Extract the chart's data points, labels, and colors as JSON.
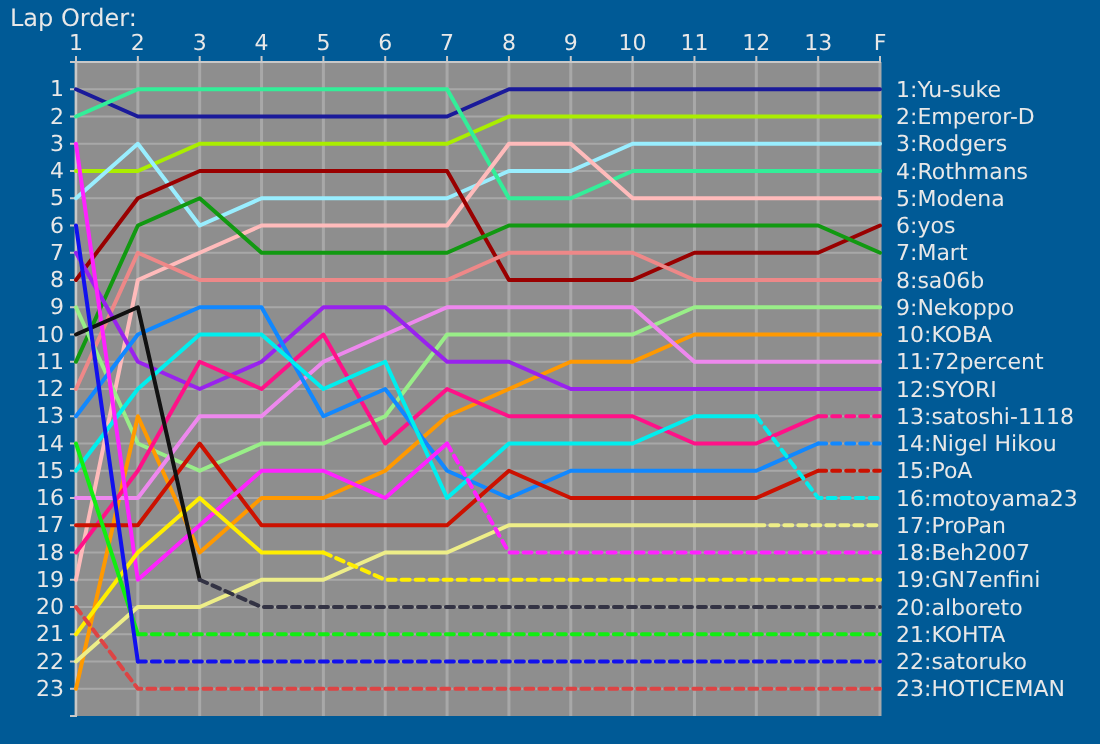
{
  "chart_data": {
    "type": "line",
    "title": "Lap Order:",
    "x": [
      1,
      2,
      3,
      4,
      5,
      6,
      7,
      8,
      9,
      10,
      11,
      12,
      13,
      14
    ],
    "xlim": [
      1,
      14
    ],
    "xticks": [
      1,
      2,
      3,
      4,
      5,
      6,
      7,
      8,
      9,
      10,
      11,
      12,
      13,
      {
        "value": 14,
        "label": "F"
      }
    ],
    "ylim": [
      24,
      0
    ],
    "yticks": [
      1,
      2,
      3,
      4,
      5,
      6,
      7,
      8,
      9,
      10,
      11,
      12,
      13,
      14,
      15,
      16,
      17,
      18,
      19,
      20,
      21,
      22,
      23
    ],
    "grid": true,
    "legend": false,
    "marker": "none",
    "line_style": "solid",
    "series": [
      {
        "name": "1:Yu-suke",
        "color": "#1a1a9a",
        "values": [
          1,
          2,
          2,
          2,
          2,
          2,
          2,
          1,
          1,
          1,
          1,
          1,
          1,
          1
        ]
      },
      {
        "name": "2:Emperor-D",
        "color": "#aaee00",
        "values": [
          4,
          4,
          3,
          3,
          3,
          3,
          3,
          2,
          2,
          2,
          2,
          2,
          2,
          2
        ]
      },
      {
        "name": "3:Rodgers",
        "color": "#99eeff",
        "values": [
          5,
          3,
          6,
          5,
          5,
          5,
          5,
          4,
          4,
          3,
          3,
          3,
          3,
          3
        ]
      },
      {
        "name": "4:Rothmans",
        "color": "#33ee99",
        "values": [
          2,
          1,
          1,
          1,
          1,
          1,
          1,
          5,
          5,
          4,
          4,
          4,
          4,
          4
        ]
      },
      {
        "name": "5:Modena",
        "color": "#ffbbbb",
        "values": [
          19,
          8,
          7,
          6,
          6,
          6,
          6,
          3,
          3,
          5,
          5,
          5,
          5,
          5
        ]
      },
      {
        "name": "6:yos",
        "color": "#990000",
        "values": [
          8,
          5,
          4,
          4,
          4,
          4,
          4,
          8,
          8,
          8,
          7,
          7,
          7,
          6
        ]
      },
      {
        "name": "7:Mart",
        "color": "#119911",
        "values": [
          11,
          6,
          5,
          7,
          7,
          7,
          7,
          6,
          6,
          6,
          6,
          6,
          6,
          7
        ]
      },
      {
        "name": "8:sa06b",
        "color": "#ee8888",
        "values": [
          12,
          7,
          8,
          8,
          8,
          8,
          8,
          7,
          7,
          7,
          8,
          8,
          8,
          8
        ]
      },
      {
        "name": "9:Nekoppo",
        "color": "#99ee88",
        "values": [
          9,
          14,
          15,
          14,
          14,
          13,
          10,
          10,
          10,
          10,
          9,
          9,
          9,
          9
        ]
      },
      {
        "name": "10:KOBA",
        "color": "#ff9900",
        "values": [
          23,
          13,
          18,
          16,
          16,
          15,
          13,
          12,
          11,
          11,
          10,
          10,
          10,
          10
        ]
      },
      {
        "name": "11:72percent",
        "color": "#ee88ee",
        "values": [
          16,
          16,
          13,
          13,
          11,
          10,
          9,
          9,
          9,
          9,
          11,
          11,
          11,
          11
        ]
      },
      {
        "name": "12:SYORI",
        "color": "#9922ee",
        "values": [
          7,
          11,
          12,
          11,
          9,
          9,
          11,
          11,
          12,
          12,
          12,
          12,
          12,
          12
        ]
      },
      {
        "color": "#ff1188",
        "values": [
          18,
          15,
          11,
          12,
          10,
          14,
          12,
          13,
          13,
          13,
          14,
          14,
          13,
          null
        ]
      },
      {
        "name": "13:satoshi-1118",
        "color": "#ff1188",
        "line_style": "dashed",
        "x": [
          13,
          14
        ],
        "values": [
          13,
          13
        ]
      },
      {
        "color": "#1188ff",
        "values": [
          13,
          10,
          9,
          9,
          13,
          12,
          15,
          16,
          15,
          15,
          15,
          15,
          14,
          null
        ]
      },
      {
        "name": "14:Nigel Hikou",
        "color": "#1188ff",
        "line_style": "dashed",
        "x": [
          13,
          14
        ],
        "values": [
          14,
          14
        ]
      },
      {
        "color": "#cc1100",
        "values": [
          17,
          17,
          14,
          17,
          17,
          17,
          17,
          15,
          16,
          16,
          16,
          16,
          15,
          null
        ]
      },
      {
        "name": "15:PoA",
        "color": "#cc1100",
        "line_style": "dashed",
        "x": [
          13,
          14
        ],
        "values": [
          15,
          15
        ]
      },
      {
        "color": "#00eeee",
        "values": [
          15,
          12,
          10,
          10,
          12,
          11,
          16,
          14,
          14,
          14,
          13,
          13,
          null,
          null
        ]
      },
      {
        "name": "16:motoyama23",
        "color": "#00eeee",
        "line_style": "dashed",
        "x": [
          12,
          13,
          14
        ],
        "values": [
          13,
          16,
          16
        ]
      },
      {
        "color": "#eeee88",
        "values": [
          22,
          20,
          20,
          19,
          19,
          18,
          18,
          17,
          17,
          17,
          17,
          17,
          null,
          null
        ]
      },
      {
        "name": "17:ProPan",
        "color": "#eeee88",
        "line_style": "dashed",
        "x": [
          12,
          14
        ],
        "values": [
          17,
          17
        ]
      },
      {
        "color": "#ff22ff",
        "values": [
          3,
          19,
          17,
          15,
          15,
          16,
          14,
          null,
          null,
          null,
          null,
          null,
          null,
          null
        ]
      },
      {
        "name": "18:Beh2007",
        "color": "#ff22ff",
        "line_style": "dashed",
        "x": [
          7,
          8,
          14
        ],
        "values": [
          14,
          18,
          18
        ]
      },
      {
        "color": "#ffee00",
        "values": [
          21,
          18,
          16,
          18,
          18,
          null,
          null,
          null,
          null,
          null,
          null,
          null,
          null,
          null
        ]
      },
      {
        "name": "19:GN7enfini",
        "color": "#ffee00",
        "line_style": "dashed",
        "x": [
          5,
          6,
          14
        ],
        "values": [
          18,
          19,
          19
        ]
      },
      {
        "color": "#111111",
        "values": [
          10,
          9,
          19,
          null,
          null,
          null,
          null,
          null,
          null,
          null,
          null,
          null,
          null,
          null
        ]
      },
      {
        "name": "20:alboreto",
        "color": "#333344",
        "line_style": "dashed",
        "x": [
          3,
          4,
          14
        ],
        "values": [
          19,
          20,
          20
        ]
      },
      {
        "color": "#11ee11",
        "values": [
          14,
          21,
          null,
          null,
          null,
          null,
          null,
          null,
          null,
          null,
          null,
          null,
          null,
          null
        ]
      },
      {
        "name": "21:KOHTA",
        "color": "#11ee11",
        "line_style": "dashed",
        "x": [
          2,
          14
        ],
        "values": [
          21,
          21
        ]
      },
      {
        "color": "#1111ee",
        "values": [
          6,
          22,
          null,
          null,
          null,
          null,
          null,
          null,
          null,
          null,
          null,
          null,
          null,
          null
        ]
      },
      {
        "name": "22:satoruko",
        "color": "#1111ee",
        "line_style": "dashed",
        "x": [
          2,
          14
        ],
        "values": [
          22,
          22
        ]
      },
      {
        "name": "23:HOTICEMAN",
        "color": "#dd4444",
        "line_style": "dashed",
        "x": [
          1,
          2,
          14
        ],
        "values": [
          20,
          23,
          23
        ]
      }
    ]
  }
}
